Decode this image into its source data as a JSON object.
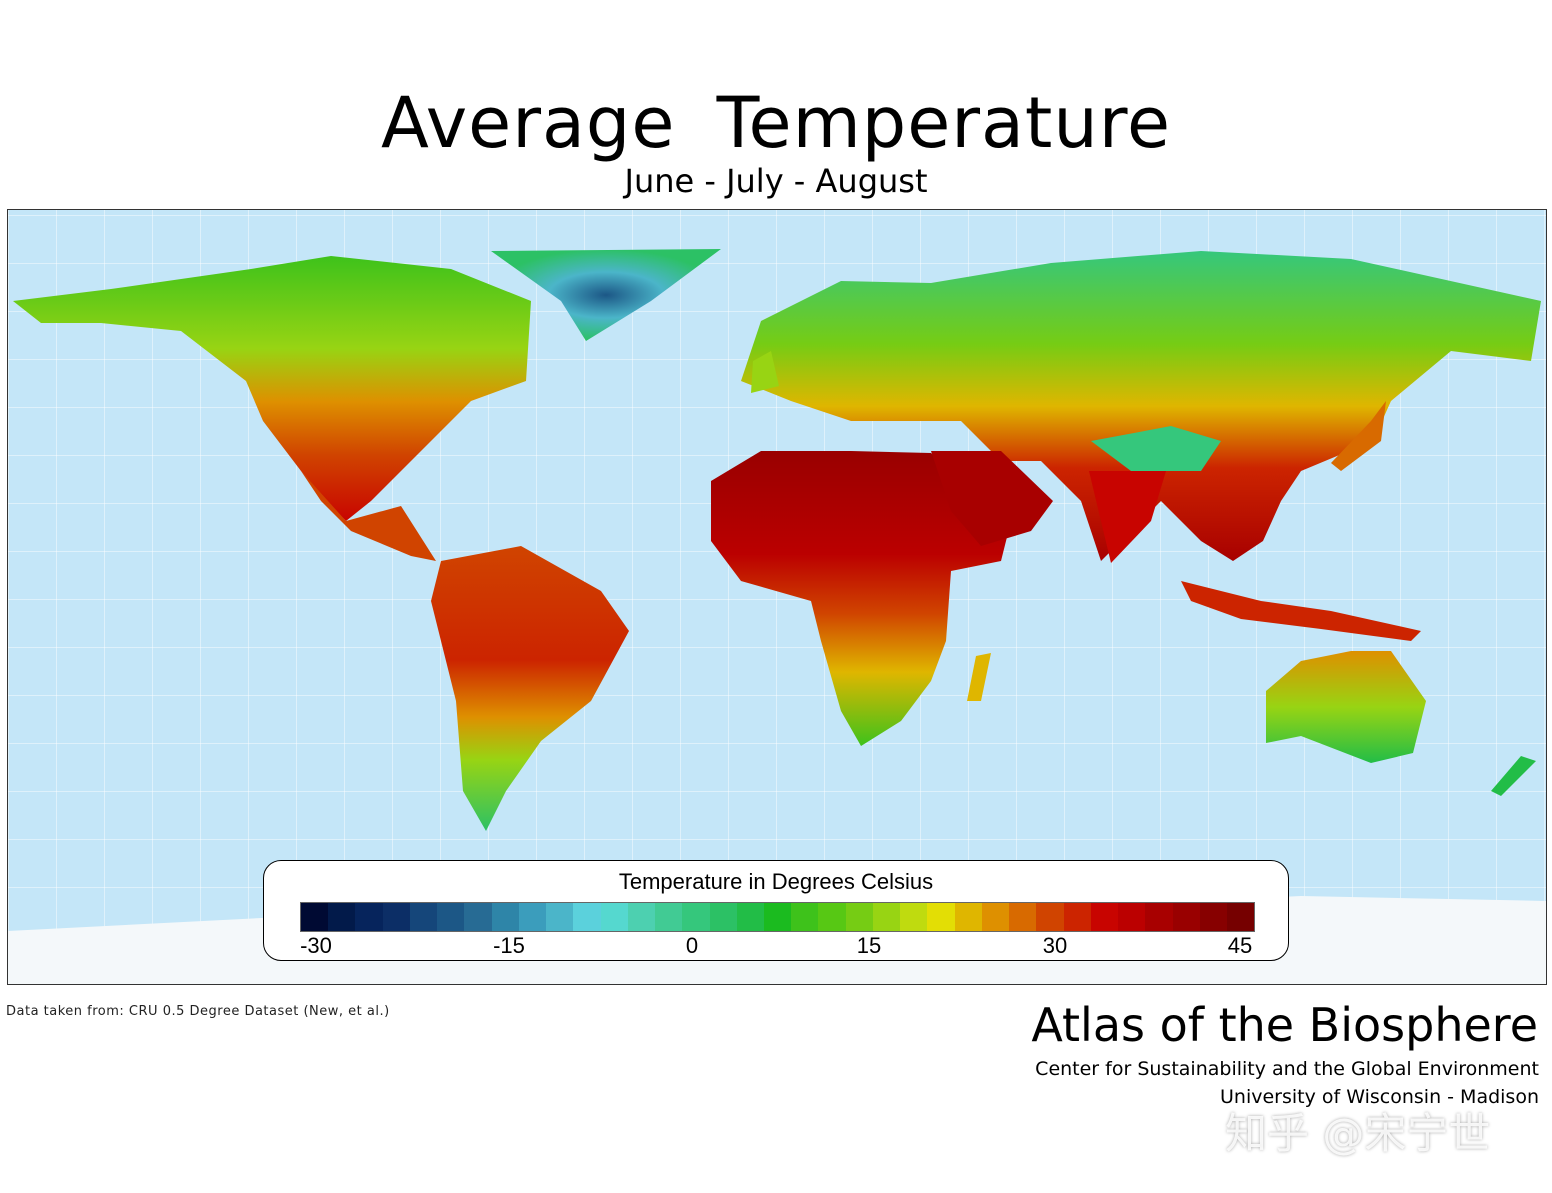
{
  "title": "Average  Temperature",
  "subtitle": "June - July - August",
  "legend": {
    "title": "Temperature in Degrees Celsius",
    "ticks": [
      "-30",
      "-15",
      "0",
      "15",
      "30",
      "45"
    ],
    "range": [
      -30,
      45
    ],
    "colors": [
      "#000a33",
      "#021a4a",
      "#06245c",
      "#0c2e66",
      "#15467a",
      "#1c5786",
      "#276b94",
      "#2e85a8",
      "#3b9dbc",
      "#4bb5c9",
      "#5bd1dc",
      "#55d8cf",
      "#4dd0b0",
      "#41cb94",
      "#35c77c",
      "#2cc165",
      "#22bd47",
      "#1bbb1f",
      "#3ec21b",
      "#57c814",
      "#76cc14",
      "#98d413",
      "#bfdb0f",
      "#e3de05",
      "#dfb600",
      "#de9000",
      "#d86a00",
      "#d04400",
      "#cc2400",
      "#c80400",
      "#bb0000",
      "#a80000",
      "#990000",
      "#870000",
      "#760000"
    ]
  },
  "colors": {
    "ocean": "#c4e6f8",
    "ice": "#f4f8fa"
  },
  "source": "Data taken from: CRU 0.5 Degree Dataset (New, et al.)",
  "brand": "Atlas of the Biosphere",
  "org": "Center for Sustainability and the Global Environment",
  "university": "University of Wisconsin - Madison",
  "watermark": "知乎 @宋宁世"
}
